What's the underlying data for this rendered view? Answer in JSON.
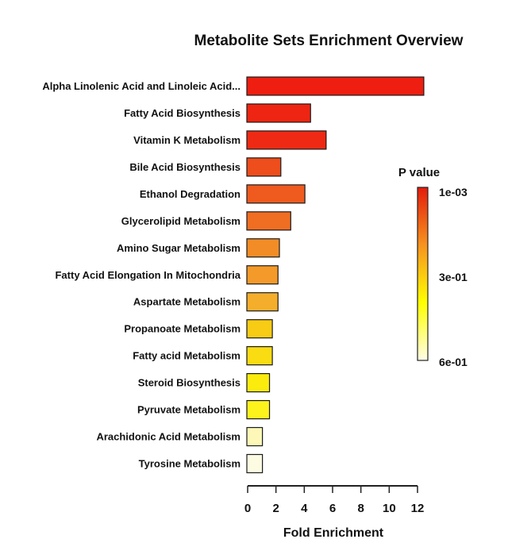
{
  "chart_data": {
    "type": "bar",
    "orientation": "horizontal",
    "title": "Metabolite Sets Enrichment Overview",
    "xlabel": "Fold Enrichment",
    "ylabel": "",
    "xlim": [
      0,
      12
    ],
    "xticks": [
      0,
      2,
      4,
      6,
      8,
      10,
      12
    ],
    "grid": false,
    "categories": [
      "Alpha Linolenic Acid and Linoleic Acid...",
      "Fatty Acid Biosynthesis",
      "Vitamin K Metabolism",
      "Bile Acid Biosynthesis",
      "Ethanol Degradation",
      "Glycerolipid Metabolism",
      "Amino Sugar Metabolism",
      "Fatty Acid Elongation In Mitochondria",
      "Aspartate Metabolism",
      "Propanoate Metabolism",
      "Fatty acid Metabolism",
      "Steroid Biosynthesis",
      "Pyruvate Metabolism",
      "Arachidonic Acid Metabolism",
      "Tyrosine Metabolism"
    ],
    "values": [
      12.5,
      4.5,
      5.6,
      2.4,
      4.1,
      3.1,
      2.3,
      2.2,
      2.2,
      1.8,
      1.8,
      1.6,
      1.6,
      1.1,
      1.1
    ],
    "bar_colors": [
      "#ee1e10",
      "#ee2512",
      "#ef2a14",
      "#ee4d1c",
      "#ef5a1e",
      "#f06e22",
      "#f28c26",
      "#f39a2a",
      "#f4ae2c",
      "#f8cc14",
      "#f9dc12",
      "#fbec0e",
      "#fdf31c",
      "#fdf8b8",
      "#fdfbe2"
    ],
    "legend": {
      "title": "P value",
      "placement": "right",
      "labels": [
        "1e-03",
        "3e-01",
        "6e-01"
      ],
      "gradient": [
        "#e41b0c",
        "#f7931e",
        "#ffff00",
        "#fffce8"
      ]
    }
  }
}
